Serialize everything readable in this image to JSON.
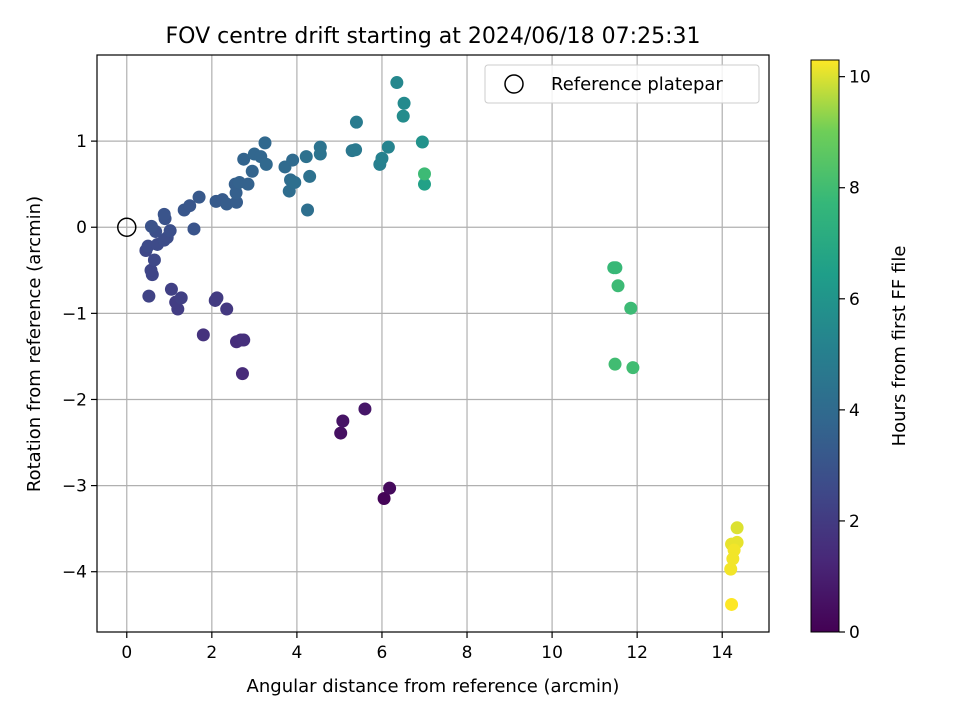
{
  "chart_data": {
    "type": "scatter",
    "title": "FOV centre drift starting at 2024/06/18 07:25:31",
    "xlabel": "Angular distance from reference (arcmin)",
    "ylabel": "Rotation from reference (arcmin)",
    "xlim": [
      -0.7,
      15.1
    ],
    "ylim": [
      -4.7,
      2.0
    ],
    "xticks": [
      0,
      2,
      4,
      6,
      8,
      10,
      12,
      14
    ],
    "yticks": [
      -4,
      -3,
      -2,
      -1,
      0,
      1
    ],
    "grid": true,
    "legend": {
      "placement": "top-right",
      "entries": [
        "Reference platepar"
      ]
    },
    "reference_point": {
      "x": 0,
      "y": 0
    },
    "colorbar": {
      "label": "Hours from first FF file",
      "range": [
        0,
        10.3
      ],
      "ticks": [
        0,
        2,
        4,
        6,
        8,
        10
      ],
      "colormap": "viridis"
    },
    "points": [
      {
        "x": 6.05,
        "y": -3.15,
        "h": 0.1
      },
      {
        "x": 6.18,
        "y": -3.03,
        "h": 0.3
      },
      {
        "x": 5.03,
        "y": -2.39,
        "h": 0.5
      },
      {
        "x": 5.08,
        "y": -2.25,
        "h": 0.6
      },
      {
        "x": 5.6,
        "y": -2.11,
        "h": 0.7
      },
      {
        "x": 2.72,
        "y": -1.7,
        "h": 1.4
      },
      {
        "x": 2.58,
        "y": -1.33,
        "h": 1.5
      },
      {
        "x": 2.68,
        "y": -1.31,
        "h": 1.5
      },
      {
        "x": 2.75,
        "y": -1.31,
        "h": 1.6
      },
      {
        "x": 1.8,
        "y": -1.25,
        "h": 1.7
      },
      {
        "x": 2.35,
        "y": -0.95,
        "h": 1.9
      },
      {
        "x": 2.08,
        "y": -0.85,
        "h": 2.0
      },
      {
        "x": 2.12,
        "y": -0.82,
        "h": 2.0
      },
      {
        "x": 1.2,
        "y": -0.95,
        "h": 2.1
      },
      {
        "x": 1.15,
        "y": -0.87,
        "h": 2.1
      },
      {
        "x": 1.28,
        "y": -0.82,
        "h": 2.2
      },
      {
        "x": 1.05,
        "y": -0.72,
        "h": 2.2
      },
      {
        "x": 0.52,
        "y": -0.8,
        "h": 2.3
      },
      {
        "x": 0.6,
        "y": -0.55,
        "h": 2.4
      },
      {
        "x": 0.57,
        "y": -0.5,
        "h": 2.4
      },
      {
        "x": 0.65,
        "y": -0.38,
        "h": 2.5
      },
      {
        "x": 0.45,
        "y": -0.27,
        "h": 2.5
      },
      {
        "x": 0.5,
        "y": -0.22,
        "h": 2.6
      },
      {
        "x": 0.72,
        "y": -0.2,
        "h": 2.6
      },
      {
        "x": 0.88,
        "y": -0.15,
        "h": 2.7
      },
      {
        "x": 0.95,
        "y": -0.12,
        "h": 2.7
      },
      {
        "x": 1.02,
        "y": -0.04,
        "h": 2.8
      },
      {
        "x": 0.68,
        "y": -0.05,
        "h": 2.8
      },
      {
        "x": 0.58,
        "y": 0.01,
        "h": 2.9
      },
      {
        "x": 0.9,
        "y": 0.1,
        "h": 2.9
      },
      {
        "x": 0.88,
        "y": 0.15,
        "h": 3.0
      },
      {
        "x": 1.58,
        "y": -0.02,
        "h": 3.0
      },
      {
        "x": 1.35,
        "y": 0.2,
        "h": 3.1
      },
      {
        "x": 1.48,
        "y": 0.25,
        "h": 3.1
      },
      {
        "x": 1.7,
        "y": 0.35,
        "h": 3.2
      },
      {
        "x": 2.1,
        "y": 0.3,
        "h": 3.3
      },
      {
        "x": 2.25,
        "y": 0.32,
        "h": 3.3
      },
      {
        "x": 2.35,
        "y": 0.27,
        "h": 3.4
      },
      {
        "x": 2.58,
        "y": 0.29,
        "h": 3.4
      },
      {
        "x": 2.57,
        "y": 0.4,
        "h": 3.5
      },
      {
        "x": 2.55,
        "y": 0.5,
        "h": 3.5
      },
      {
        "x": 2.65,
        "y": 0.52,
        "h": 3.6
      },
      {
        "x": 2.85,
        "y": 0.5,
        "h": 3.6
      },
      {
        "x": 2.95,
        "y": 0.65,
        "h": 3.7
      },
      {
        "x": 2.75,
        "y": 0.79,
        "h": 3.7
      },
      {
        "x": 3.0,
        "y": 0.85,
        "h": 3.8
      },
      {
        "x": 3.15,
        "y": 0.82,
        "h": 3.8
      },
      {
        "x": 3.28,
        "y": 0.73,
        "h": 3.9
      },
      {
        "x": 3.25,
        "y": 0.98,
        "h": 3.9
      },
      {
        "x": 3.72,
        "y": 0.7,
        "h": 4.0
      },
      {
        "x": 3.9,
        "y": 0.78,
        "h": 4.0
      },
      {
        "x": 3.85,
        "y": 0.55,
        "h": 4.1
      },
      {
        "x": 3.82,
        "y": 0.42,
        "h": 4.1
      },
      {
        "x": 3.95,
        "y": 0.52,
        "h": 4.2
      },
      {
        "x": 4.25,
        "y": 0.2,
        "h": 4.2
      },
      {
        "x": 4.3,
        "y": 0.59,
        "h": 4.3
      },
      {
        "x": 4.22,
        "y": 0.82,
        "h": 4.3
      },
      {
        "x": 4.55,
        "y": 0.85,
        "h": 4.4
      },
      {
        "x": 4.55,
        "y": 0.93,
        "h": 4.4
      },
      {
        "x": 5.3,
        "y": 0.89,
        "h": 4.6
      },
      {
        "x": 5.38,
        "y": 0.9,
        "h": 4.7
      },
      {
        "x": 5.4,
        "y": 1.22,
        "h": 4.8
      },
      {
        "x": 5.95,
        "y": 0.73,
        "h": 5.0
      },
      {
        "x": 6.0,
        "y": 0.8,
        "h": 5.1
      },
      {
        "x": 6.15,
        "y": 0.93,
        "h": 5.2
      },
      {
        "x": 6.35,
        "y": 1.68,
        "h": 5.4
      },
      {
        "x": 6.52,
        "y": 1.44,
        "h": 5.5
      },
      {
        "x": 6.5,
        "y": 1.29,
        "h": 5.6
      },
      {
        "x": 6.95,
        "y": 0.99,
        "h": 5.9
      },
      {
        "x": 7.0,
        "y": 0.5,
        "h": 6.6
      },
      {
        "x": 7.0,
        "y": 0.62,
        "h": 7.9
      },
      {
        "x": 11.45,
        "y": -0.47,
        "h": 7.8
      },
      {
        "x": 11.5,
        "y": -0.47,
        "h": 7.8
      },
      {
        "x": 11.55,
        "y": -0.68,
        "h": 7.9
      },
      {
        "x": 11.85,
        "y": -0.94,
        "h": 7.9
      },
      {
        "x": 11.48,
        "y": -1.59,
        "h": 8.0
      },
      {
        "x": 11.9,
        "y": -1.63,
        "h": 8.0
      },
      {
        "x": 14.35,
        "y": -3.49,
        "h": 10.0
      },
      {
        "x": 14.35,
        "y": -3.66,
        "h": 10.1
      },
      {
        "x": 14.22,
        "y": -3.68,
        "h": 10.1
      },
      {
        "x": 14.28,
        "y": -3.75,
        "h": 10.2
      },
      {
        "x": 14.25,
        "y": -3.85,
        "h": 10.2
      },
      {
        "x": 14.2,
        "y": -3.97,
        "h": 10.2
      },
      {
        "x": 14.22,
        "y": -4.38,
        "h": 10.3
      }
    ]
  }
}
